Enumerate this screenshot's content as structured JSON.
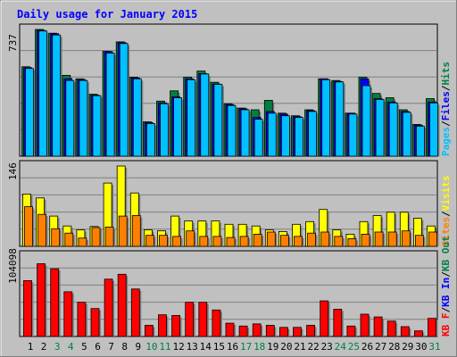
{
  "chart_data": [
    {
      "type": "bar",
      "title": "Daily usage for January 2015",
      "ylabel_max": "737",
      "categories": [
        "1",
        "2",
        "3",
        "4",
        "5",
        "6",
        "7",
        "8",
        "9",
        "10",
        "11",
        "12",
        "13",
        "14",
        "15",
        "16",
        "17",
        "18",
        "19",
        "20",
        "21",
        "22",
        "23",
        "24",
        "25",
        "26",
        "27",
        "28",
        "29",
        "30",
        "31"
      ],
      "weekend_days": [
        "3",
        "4",
        "10",
        "11",
        "17",
        "18",
        "24",
        "25",
        "31"
      ],
      "legend": [
        {
          "key": "hits",
          "label": "Hits"
        },
        {
          "key": "files",
          "label": "Files"
        },
        {
          "key": "pages",
          "label": "Pages"
        }
      ],
      "ylim": [
        0,
        737
      ],
      "series": [
        {
          "key": "hits",
          "name": "Hits",
          "values": [
            520,
            737,
            715,
            470,
            450,
            360,
            610,
            665,
            460,
            200,
            320,
            380,
            460,
            495,
            430,
            305,
            280,
            270,
            325,
            250,
            235,
            270,
            450,
            440,
            250,
            460,
            365,
            340,
            270,
            185,
            335
          ]
        },
        {
          "key": "files",
          "name": "Files",
          "values": [
            515,
            732,
            712,
            450,
            445,
            355,
            608,
            660,
            455,
            195,
            310,
            345,
            450,
            480,
            420,
            300,
            275,
            225,
            260,
            245,
            230,
            265,
            450,
            435,
            250,
            450,
            335,
            315,
            260,
            180,
            315
          ]
        },
        {
          "key": "pages",
          "name": "Pages",
          "values": [
            510,
            728,
            705,
            440,
            440,
            352,
            600,
            655,
            450,
            190,
            305,
            340,
            445,
            478,
            418,
            295,
            270,
            215,
            250,
            235,
            225,
            260,
            445,
            432,
            245,
            410,
            330,
            310,
            255,
            175,
            310
          ]
        }
      ]
    },
    {
      "type": "bar",
      "ylabel_max": "146",
      "legend": [
        {
          "key": "visits",
          "label": "Visits"
        },
        {
          "key": "sites",
          "label": "Sites"
        }
      ],
      "ylim": [
        0,
        146
      ],
      "series": [
        {
          "key": "visits",
          "name": "Visits",
          "values": [
            95,
            88,
            55,
            37,
            30,
            36,
            115,
            146,
            97,
            30,
            28,
            55,
            46,
            46,
            46,
            40,
            40,
            37,
            30,
            27,
            40,
            45,
            67,
            30,
            22,
            45,
            56,
            62,
            62,
            51,
            37
          ]
        },
        {
          "key": "sites",
          "name": "Sites",
          "values": [
            72,
            58,
            32,
            24,
            15,
            34,
            35,
            55,
            56,
            20,
            20,
            18,
            28,
            18,
            18,
            16,
            18,
            22,
            26,
            20,
            18,
            24,
            26,
            18,
            14,
            22,
            26,
            26,
            28,
            20,
            26
          ]
        }
      ]
    },
    {
      "type": "bar",
      "ylabel_max": "104098",
      "legend": [
        {
          "key": "kbin",
          "label": "KB In"
        },
        {
          "key": "kbout",
          "label": "KB Out"
        },
        {
          "key": "kbf",
          "label": "KB F"
        }
      ],
      "ylim": [
        0,
        115000
      ],
      "series": [
        {
          "key": "kbf",
          "name": "KB F",
          "values": [
            80000,
            104098,
            97000,
            64000,
            49000,
            40000,
            82000,
            89000,
            68000,
            16000,
            31000,
            30000,
            49000,
            49000,
            38000,
            19000,
            15000,
            18000,
            16000,
            13000,
            13000,
            16000,
            51000,
            39000,
            15000,
            32000,
            28000,
            22000,
            14000,
            8000,
            26000
          ]
        }
      ]
    }
  ],
  "colors": {
    "background": "#c0c0c0",
    "frame_dark": "#808080",
    "frame_light": "#ffffff",
    "gridline": "#808080",
    "title": "#0000ff",
    "day_label": "#000000",
    "weekend_label": "#008040",
    "hits": "#008040",
    "files": "#0000ff",
    "pages": "#00c0ff",
    "visits": "#ffff00",
    "sites": "#ff8000",
    "kbf": "#ff0000",
    "kbin": "#0000ff",
    "kbout": "#008040",
    "bar_edge": "#000000"
  }
}
